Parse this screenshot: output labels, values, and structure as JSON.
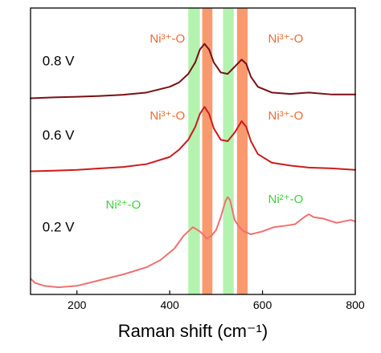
{
  "chart_data": {
    "type": "line",
    "title": "",
    "xlabel": "Raman shift (cm⁻¹)",
    "ylabel": "",
    "xlim": [
      100,
      800
    ],
    "ylim": [
      0,
      100
    ],
    "x_ticks": [
      "200",
      "400",
      "600",
      "800"
    ],
    "y_ticks": false,
    "grid": false,
    "colors": {
      "v08": "#7a0f14",
      "v06": "#cc1b1b",
      "v02": "#f07070",
      "green_band": "#b4f2b0",
      "orange_band": "#f99a6e",
      "ni3_label": "#ee6a2e",
      "ni2_label": "#3bd23b"
    },
    "bands": [
      {
        "color": "green",
        "x_from": 440,
        "x_to": 465
      },
      {
        "color": "orange",
        "x_from": 470,
        "x_to": 492
      },
      {
        "color": "green",
        "x_from": 515,
        "x_to": 538
      },
      {
        "color": "orange",
        "x_from": 545,
        "x_to": 568
      }
    ],
    "annotations": [
      {
        "label": "Ni³⁺-O",
        "color": "ni3",
        "x": 395,
        "y": 88
      },
      {
        "label": "Ni³⁺-O",
        "color": "ni3",
        "x": 650,
        "y": 88
      },
      {
        "label": "Ni³⁺-O",
        "color": "ni3",
        "x": 395,
        "y": 61
      },
      {
        "label": "Ni³⁺-O",
        "color": "ni3",
        "x": 650,
        "y": 61
      },
      {
        "label": "Ni²⁺-O",
        "color": "ni2",
        "x": 300,
        "y": 30
      },
      {
        "label": "Ni²⁺-O",
        "color": "ni2",
        "x": 650,
        "y": 32
      }
    ],
    "series": [
      {
        "name": "0.8 V",
        "color_key": "v08",
        "label_pos": [
          160,
          80
        ],
        "x": [
          100,
          150,
          200,
          250,
          300,
          350,
          400,
          420,
          440,
          455,
          465,
          475,
          485,
          495,
          510,
          525,
          540,
          555,
          565,
          575,
          590,
          620,
          660,
          700,
          750,
          800
        ],
        "y": [
          68.5,
          68.8,
          69,
          69.3,
          69.7,
          70.5,
          72.5,
          74,
          77,
          81,
          85.5,
          87.5,
          85.5,
          81,
          77.5,
          77,
          79.5,
          82,
          80.5,
          76,
          72.5,
          70.5,
          70,
          70.5,
          69.8,
          69.8
        ]
      },
      {
        "name": "0.6 V",
        "color_key": "v06",
        "label_pos": [
          160,
          54
        ],
        "x": [
          100,
          150,
          200,
          250,
          300,
          350,
          400,
          420,
          440,
          455,
          465,
          475,
          485,
          495,
          510,
          525,
          540,
          555,
          565,
          575,
          590,
          620,
          660,
          700,
          750,
          800
        ],
        "y": [
          43,
          43.2,
          43.5,
          44,
          44.5,
          45.5,
          48,
          50.5,
          54,
          58.5,
          63,
          65.5,
          63,
          58,
          54,
          53.5,
          56.5,
          60.5,
          58.5,
          53.5,
          49,
          46,
          45,
          44.3,
          44,
          43.5
        ]
      },
      {
        "name": "0.2 V",
        "color_key": "v02",
        "label_pos": [
          160,
          22
        ],
        "x": [
          100,
          110,
          130,
          160,
          200,
          250,
          300,
          350,
          380,
          410,
          430,
          450,
          465,
          480,
          490,
          500,
          510,
          520,
          525,
          530,
          540,
          550,
          560,
          575,
          600,
          625,
          650,
          670,
          690,
          700,
          710,
          730,
          760,
          790,
          800
        ],
        "y": [
          5.5,
          4,
          3,
          2.5,
          3,
          5,
          7,
          9.5,
          12,
          16,
          20.5,
          23.5,
          22,
          19.5,
          20.5,
          22.5,
          27,
          32.5,
          34,
          33,
          26,
          23.5,
          22,
          21,
          22,
          23.5,
          24,
          24.5,
          27,
          28,
          27,
          26.5,
          25,
          26,
          25.5
        ]
      }
    ]
  }
}
